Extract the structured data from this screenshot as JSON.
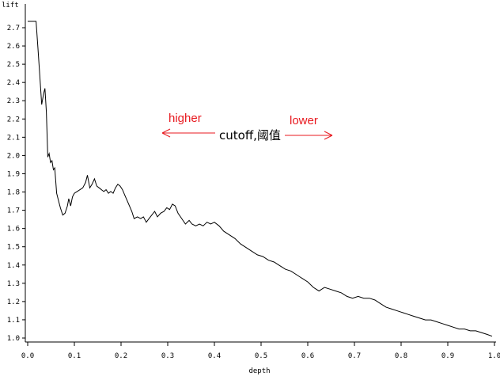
{
  "chart_data": {
    "type": "line",
    "xlabel": "depth",
    "ylabel": "lift",
    "xlim": [
      0.0,
      1.0
    ],
    "ylim": [
      0.97,
      2.85
    ],
    "x_ticks": [
      "0.0",
      "0.1",
      "0.2",
      "0.3",
      "0.4",
      "0.5",
      "0.6",
      "0.7",
      "0.8",
      "0.9",
      "1.0"
    ],
    "y_ticks": [
      "1.0",
      "1.1",
      "1.2",
      "1.3",
      "1.4",
      "1.5",
      "1.6",
      "1.7",
      "1.8",
      "1.9",
      "2.0",
      "2.1",
      "2.2",
      "2.3",
      "2.4",
      "2.5",
      "2.6",
      "2.7"
    ],
    "grid": false,
    "series": [
      {
        "color": "#000000",
        "points": [
          [
            0.0,
            2.75
          ],
          [
            0.018,
            2.75
          ],
          [
            0.022,
            2.6
          ],
          [
            0.026,
            2.45
          ],
          [
            0.03,
            2.29
          ],
          [
            0.034,
            2.35
          ],
          [
            0.037,
            2.38
          ],
          [
            0.04,
            2.25
          ],
          [
            0.043,
            2.0
          ],
          [
            0.046,
            2.02
          ],
          [
            0.049,
            1.97
          ],
          [
            0.052,
            1.98
          ],
          [
            0.055,
            1.93
          ],
          [
            0.058,
            1.94
          ],
          [
            0.062,
            1.8
          ],
          [
            0.066,
            1.76
          ],
          [
            0.07,
            1.72
          ],
          [
            0.075,
            1.68
          ],
          [
            0.08,
            1.69
          ],
          [
            0.085,
            1.73
          ],
          [
            0.088,
            1.77
          ],
          [
            0.092,
            1.73
          ],
          [
            0.096,
            1.78
          ],
          [
            0.1,
            1.8
          ],
          [
            0.106,
            1.81
          ],
          [
            0.112,
            1.82
          ],
          [
            0.118,
            1.83
          ],
          [
            0.124,
            1.86
          ],
          [
            0.128,
            1.9
          ],
          [
            0.133,
            1.83
          ],
          [
            0.138,
            1.85
          ],
          [
            0.143,
            1.88
          ],
          [
            0.148,
            1.84
          ],
          [
            0.153,
            1.83
          ],
          [
            0.158,
            1.82
          ],
          [
            0.163,
            1.81
          ],
          [
            0.168,
            1.82
          ],
          [
            0.173,
            1.8
          ],
          [
            0.178,
            1.81
          ],
          [
            0.183,
            1.8
          ],
          [
            0.188,
            1.83
          ],
          [
            0.193,
            1.85
          ],
          [
            0.198,
            1.84
          ],
          [
            0.203,
            1.82
          ],
          [
            0.208,
            1.79
          ],
          [
            0.213,
            1.76
          ],
          [
            0.218,
            1.73
          ],
          [
            0.223,
            1.7
          ],
          [
            0.228,
            1.66
          ],
          [
            0.235,
            1.67
          ],
          [
            0.242,
            1.66
          ],
          [
            0.248,
            1.67
          ],
          [
            0.254,
            1.64
          ],
          [
            0.26,
            1.66
          ],
          [
            0.266,
            1.68
          ],
          [
            0.272,
            1.7
          ],
          [
            0.278,
            1.67
          ],
          [
            0.285,
            1.69
          ],
          [
            0.292,
            1.7
          ],
          [
            0.298,
            1.72
          ],
          [
            0.304,
            1.71
          ],
          [
            0.31,
            1.74
          ],
          [
            0.316,
            1.73
          ],
          [
            0.322,
            1.69
          ],
          [
            0.33,
            1.66
          ],
          [
            0.338,
            1.63
          ],
          [
            0.346,
            1.65
          ],
          [
            0.352,
            1.63
          ],
          [
            0.36,
            1.62
          ],
          [
            0.368,
            1.63
          ],
          [
            0.376,
            1.62
          ],
          [
            0.384,
            1.64
          ],
          [
            0.392,
            1.63
          ],
          [
            0.4,
            1.64
          ],
          [
            0.41,
            1.62
          ],
          [
            0.42,
            1.59
          ],
          [
            0.432,
            1.57
          ],
          [
            0.444,
            1.55
          ],
          [
            0.456,
            1.52
          ],
          [
            0.468,
            1.5
          ],
          [
            0.48,
            1.48
          ],
          [
            0.492,
            1.46
          ],
          [
            0.504,
            1.45
          ],
          [
            0.516,
            1.43
          ],
          [
            0.528,
            1.42
          ],
          [
            0.54,
            1.4
          ],
          [
            0.552,
            1.38
          ],
          [
            0.564,
            1.37
          ],
          [
            0.576,
            1.35
          ],
          [
            0.588,
            1.33
          ],
          [
            0.6,
            1.31
          ],
          [
            0.612,
            1.28
          ],
          [
            0.624,
            1.26
          ],
          [
            0.636,
            1.28
          ],
          [
            0.648,
            1.27
          ],
          [
            0.66,
            1.26
          ],
          [
            0.672,
            1.25
          ],
          [
            0.684,
            1.23
          ],
          [
            0.696,
            1.22
          ],
          [
            0.708,
            1.23
          ],
          [
            0.72,
            1.22
          ],
          [
            0.732,
            1.22
          ],
          [
            0.744,
            1.21
          ],
          [
            0.756,
            1.19
          ],
          [
            0.768,
            1.17
          ],
          [
            0.78,
            1.16
          ],
          [
            0.792,
            1.15
          ],
          [
            0.804,
            1.14
          ],
          [
            0.816,
            1.13
          ],
          [
            0.828,
            1.12
          ],
          [
            0.84,
            1.11
          ],
          [
            0.852,
            1.1
          ],
          [
            0.864,
            1.1
          ],
          [
            0.876,
            1.09
          ],
          [
            0.888,
            1.08
          ],
          [
            0.9,
            1.07
          ],
          [
            0.912,
            1.06
          ],
          [
            0.924,
            1.05
          ],
          [
            0.936,
            1.05
          ],
          [
            0.948,
            1.04
          ],
          [
            0.96,
            1.04
          ],
          [
            0.972,
            1.03
          ],
          [
            0.984,
            1.02
          ],
          [
            0.995,
            1.01
          ]
        ]
      }
    ],
    "annotations": {
      "higher": "higher",
      "lower": "lower",
      "cutoff": "cutoff,阈值",
      "higher_color": "#e8191f",
      "lower_color": "#e8191f",
      "arrow_color": "#e8191f"
    }
  }
}
